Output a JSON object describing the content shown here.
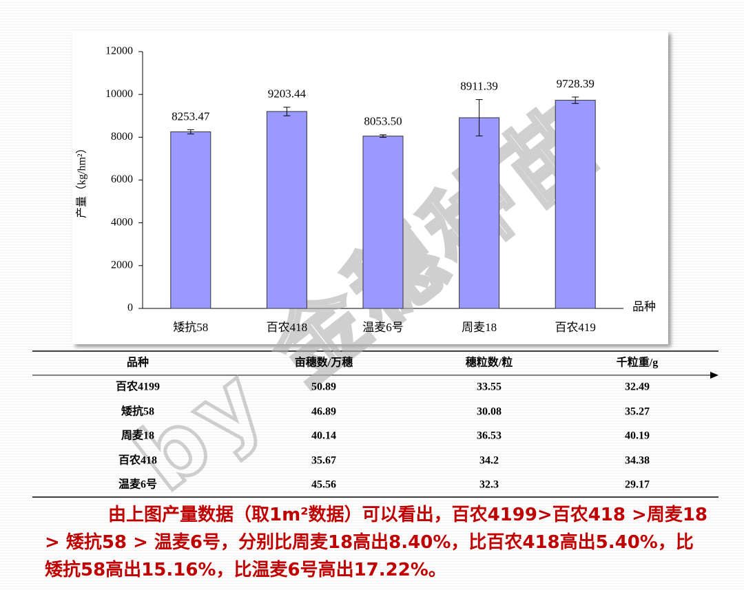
{
  "chart_data": {
    "type": "bar",
    "y_label": "产量（kg/hm²）",
    "x_label": "品种",
    "categories": [
      "矮抗58",
      "百农418",
      "温麦6号",
      "周麦18",
      "百农419"
    ],
    "values": [
      8253.47,
      9203.44,
      8053.5,
      8911.39,
      9728.39
    ],
    "value_labels": [
      "8253.47",
      "9203.44",
      "8053.50",
      "8911.39",
      "9728.39"
    ],
    "errors": [
      100,
      200,
      60,
      850,
      150
    ],
    "color": "#9999ff",
    "ylim": [
      0,
      12000
    ],
    "yticks": [
      0,
      2000,
      4000,
      6000,
      8000,
      10000,
      12000
    ]
  },
  "table": {
    "header": [
      "品种",
      "亩穗数/万穗",
      "穗粒数/粒",
      "千粒重/g"
    ],
    "rows": [
      [
        "百农4199",
        "50.89",
        "33.55",
        "32.49"
      ],
      [
        "矮抗58",
        "46.89",
        "30.08",
        "35.27"
      ],
      [
        "周麦18",
        "40.14",
        "36.53",
        "40.19"
      ],
      [
        "百农418",
        "35.67",
        "34.2",
        "34.38"
      ],
      [
        "温麦6号",
        "45.56",
        "32.3",
        "29.17"
      ]
    ]
  },
  "conclusion": "由上图产量数据（取1m²数据）可以看出，百农4199>百农418 >周麦18 > 矮抗58 > 温麦6号，分别比周麦18高出8.40%，比百农418高出5.40%，比矮抗58高出15.16%，比温麦6号高出17.22%。",
  "watermark": "by 金穗种苗"
}
